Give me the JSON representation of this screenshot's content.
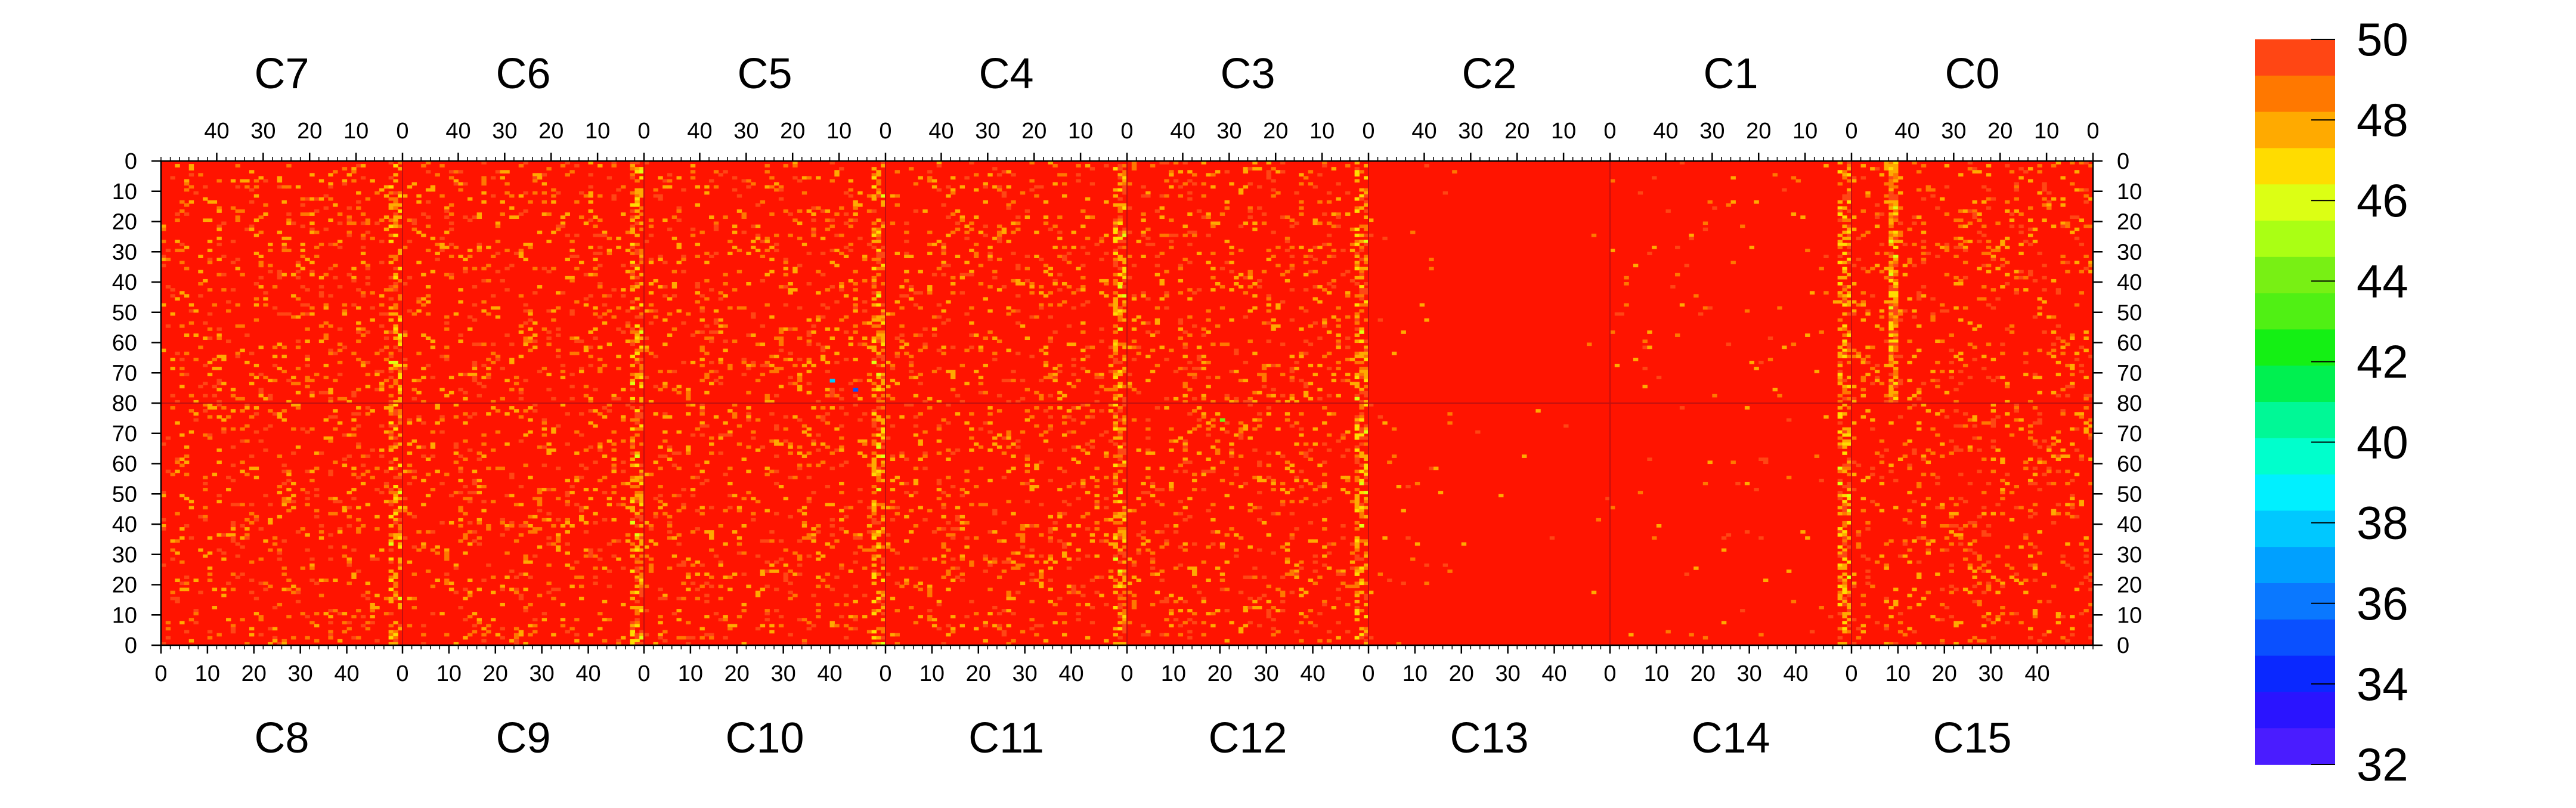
{
  "chart_data": {
    "type": "heatmap",
    "title": "",
    "top_chip_labels": [
      "C7",
      "C6",
      "C5",
      "C4",
      "C3",
      "C2",
      "C1",
      "C0"
    ],
    "bottom_chip_labels": [
      "C8",
      "C9",
      "C10",
      "C11",
      "C12",
      "C13",
      "C14",
      "C15"
    ],
    "top_column_ticks": [
      "40",
      "30",
      "20",
      "10",
      "0"
    ],
    "bottom_column_ticks": [
      "0",
      "10",
      "20",
      "30",
      "40"
    ],
    "top_half_row_ticks": [
      "0",
      "10",
      "20",
      "30",
      "40",
      "50",
      "60",
      "70",
      "80"
    ],
    "bottom_half_row_ticks": [
      "70",
      "60",
      "50",
      "40",
      "30",
      "20",
      "10",
      "0"
    ],
    "columns_per_chip": 52,
    "rows_per_half": 80,
    "zlim": [
      32,
      50
    ],
    "colorbar_ticks": [
      "50",
      "48",
      "46",
      "44",
      "42",
      "40",
      "38",
      "36",
      "34",
      "32"
    ],
    "colorbar_steps": 20,
    "dominant_value": 50,
    "typical_low_values": [
      47,
      48,
      49
    ],
    "notes_visible": "Nearly all pixels at maximum (red); yellow/orange streaks at chip boundaries and a bright streak near column 8 of C0; right portion of C13-C14 region uniformly saturated",
    "palette": [
      "#6b1cff",
      "#4a1cff",
      "#2a14ff",
      "#0a28ff",
      "#0a50ff",
      "#0a78ff",
      "#00a0ff",
      "#00c8ff",
      "#00f0ff",
      "#00ffcc",
      "#00f896",
      "#00f050",
      "#14f014",
      "#50f014",
      "#78f014",
      "#aaff14",
      "#dcff14",
      "#ffdc00",
      "#ffaa00",
      "#ff7800",
      "#ff4614",
      "#ff1400"
    ]
  }
}
